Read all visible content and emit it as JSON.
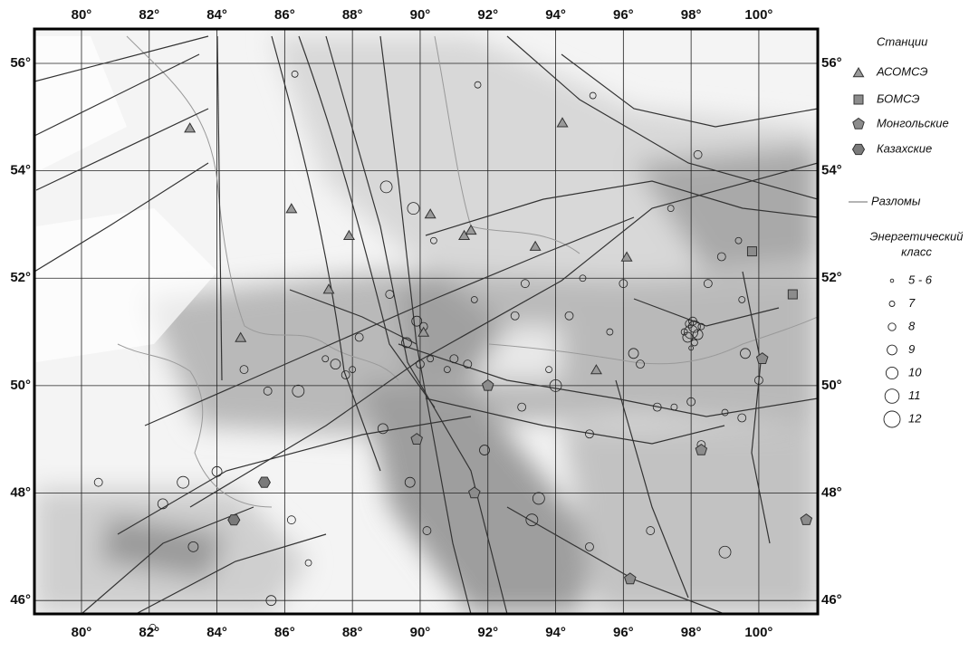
{
  "map": {
    "xlim": [
      78.61,
      101.74
    ],
    "ylim": [
      45.75,
      56.64
    ],
    "xticks": [
      {
        "value": 80,
        "label": "80°"
      },
      {
        "value": 82,
        "label": "82°"
      },
      {
        "value": 84,
        "label": "84°"
      },
      {
        "value": 86,
        "label": "86°"
      },
      {
        "value": 88,
        "label": "88°"
      },
      {
        "value": 90,
        "label": "90°"
      },
      {
        "value": 92,
        "label": "92°"
      },
      {
        "value": 94,
        "label": "94°"
      },
      {
        "value": 96,
        "label": "96°"
      },
      {
        "value": 98,
        "label": "98°"
      },
      {
        "value": 100,
        "label": "100°"
      }
    ],
    "yticks": [
      {
        "value": 46,
        "label": "46°"
      },
      {
        "value": 48,
        "label": "48°"
      },
      {
        "value": 50,
        "label": "50°"
      },
      {
        "value": 52,
        "label": "52°"
      },
      {
        "value": 54,
        "label": "54°"
      },
      {
        "value": 56,
        "label": "56°"
      }
    ],
    "grid": true,
    "stations_title": "Станции",
    "stations": [
      {
        "name": "АСОМСЭ",
        "shape": "triangle",
        "color": "#9a9a9a",
        "lon": [
          83.2,
          86.2,
          87.9,
          87.3,
          84.7,
          90.3,
          91.3,
          91.5,
          93.4,
          94.2,
          96.1,
          95.2,
          90.1
        ],
        "lat": [
          54.8,
          53.3,
          52.8,
          51.8,
          50.9,
          53.2,
          52.8,
          52.9,
          52.6,
          54.9,
          52.4,
          50.3,
          51.0
        ]
      },
      {
        "name": "БОМСЭ",
        "shape": "square",
        "color": "#8c8c8c",
        "lon": [
          99.8,
          101.0
        ],
        "lat": [
          52.5,
          51.7
        ]
      },
      {
        "name": "Монгольские",
        "shape": "pentagon",
        "color": "#8c8c8c",
        "lon": [
          92.0,
          89.9,
          91.6,
          96.2,
          98.3,
          100.1,
          101.4
        ],
        "lat": [
          50.0,
          49.0,
          48.0,
          46.4,
          48.8,
          50.5,
          47.5
        ]
      },
      {
        "name": "Казахские",
        "shape": "hexagon",
        "color": "#7a7a7a",
        "lon": [
          84.5,
          85.4
        ],
        "lat": [
          47.5,
          48.2
        ]
      }
    ],
    "faults_label": "Разломы",
    "energy_title_lines": [
      "Энергетический",
      "класс"
    ],
    "energy_classes": [
      "5 - 6",
      "7",
      "8",
      "9",
      "10",
      "11",
      "12"
    ],
    "epicenters": {
      "lon": [
        98.0,
        98.1,
        97.9,
        98.2,
        98.05,
        97.95,
        98.1,
        97.8,
        98.3,
        98.0,
        87.5,
        87.8,
        88.0,
        87.2,
        89.9,
        90.1,
        89.6,
        90.0,
        90.3,
        91.0,
        91.4,
        90.8,
        92.0,
        93.0,
        94.0,
        95.0,
        96.3,
        96.5,
        97.0,
        97.5,
        98.0,
        99.0,
        99.6,
        99.5,
        98.9,
        98.5,
        99.4,
        96.0,
        94.8,
        93.1,
        92.8,
        91.6,
        89.0,
        89.8,
        86.3,
        91.7,
        95.1,
        98.2,
        97.4,
        84.8,
        85.5,
        86.4,
        83.0,
        82.4,
        83.3,
        84.0,
        86.2,
        85.6,
        88.9,
        90.2,
        89.7,
        91.9,
        93.5,
        93.3,
        95.0,
        96.8,
        99.0,
        99.5,
        80.5,
        82.1,
        86.7,
        88.2,
        89.1,
        90.4,
        94.4,
        95.6,
        93.8,
        98.3,
        100.0
      ],
      "lat": [
        51.0,
        51.1,
        50.9,
        50.95,
        51.2,
        51.15,
        50.8,
        51.0,
        51.1,
        50.7,
        50.4,
        50.2,
        50.3,
        50.5,
        51.2,
        51.1,
        50.8,
        50.4,
        50.5,
        50.5,
        50.4,
        50.3,
        50.0,
        49.6,
        50.0,
        49.1,
        50.6,
        50.4,
        49.6,
        49.6,
        49.7,
        49.5,
        50.6,
        51.6,
        52.4,
        51.9,
        52.7,
        51.9,
        52.0,
        51.9,
        51.3,
        51.6,
        53.7,
        53.3,
        55.8,
        55.6,
        55.4,
        54.3,
        53.3,
        50.3,
        49.9,
        49.9,
        48.2,
        47.8,
        47.0,
        48.4,
        47.5,
        46.0,
        49.2,
        47.3,
        48.2,
        48.8,
        47.9,
        47.5,
        47.0,
        47.3,
        46.9,
        49.4,
        48.2,
        45.5,
        46.7,
        50.9,
        51.7,
        52.7,
        51.3,
        51.0,
        50.3,
        48.9,
        50.1
      ],
      "class": [
        11,
        10,
        9,
        9,
        8,
        8,
        7,
        7,
        7,
        6,
        9,
        8,
        7,
        7,
        9,
        8,
        9,
        8,
        7,
        8,
        8,
        7,
        9,
        8,
        10,
        8,
        9,
        8,
        8,
        7,
        8,
        7,
        9,
        7,
        8,
        8,
        7,
        8,
        7,
        8,
        8,
        7,
        10,
        10,
        7,
        7,
        7,
        8,
        7,
        8,
        8,
        10,
        10,
        9,
        9,
        9,
        8,
        9,
        9,
        8,
        9,
        9,
        10,
        10,
        8,
        8,
        10,
        8,
        8,
        7,
        7,
        8,
        8,
        7,
        8,
        7,
        7,
        8,
        8
      ]
    }
  }
}
